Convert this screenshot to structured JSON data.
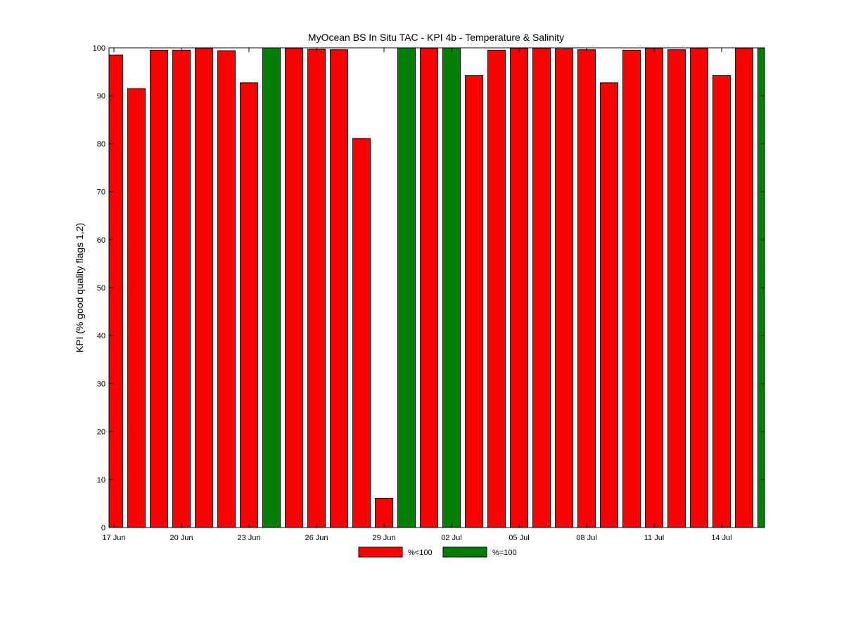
{
  "chart_data": {
    "type": "bar",
    "title": "MyOcean  BS In Situ TAC - KPI 4b - Temperature & Salinity",
    "xlabel": "",
    "ylabel": "KPI (% good quality flags 1,2)",
    "ylim": [
      0,
      100
    ],
    "yticks": [
      0,
      10,
      20,
      30,
      40,
      50,
      60,
      70,
      80,
      90,
      100
    ],
    "grid": false,
    "legend_position": "bottom-center",
    "x_tick_labels": [
      {
        "index": 0,
        "label": "17 Jun"
      },
      {
        "index": 3,
        "label": "20 Jun"
      },
      {
        "index": 6,
        "label": "23 Jun"
      },
      {
        "index": 9,
        "label": "26 Jun"
      },
      {
        "index": 12,
        "label": "29 Jun"
      },
      {
        "index": 15,
        "label": "02 Jul"
      },
      {
        "index": 18,
        "label": "05 Jul"
      },
      {
        "index": 21,
        "label": "08 Jul"
      },
      {
        "index": 24,
        "label": "11 Jul"
      },
      {
        "index": 27,
        "label": "14 Jul"
      }
    ],
    "series": [
      {
        "name": "%<100",
        "color": "#ff0000"
      },
      {
        "name": "%=100",
        "color": "#008000"
      }
    ],
    "values": [
      98.5,
      91.5,
      99.5,
      99.5,
      99.9,
      99.4,
      92.7,
      100,
      99.9,
      99.7,
      99.6,
      81.1,
      6.1,
      100,
      99.9,
      100,
      94.2,
      99.5,
      99.9,
      99.9,
      99.8,
      99.6,
      92.7,
      99.5,
      99.9,
      99.6,
      99.9,
      94.2,
      99.9,
      100
    ]
  }
}
